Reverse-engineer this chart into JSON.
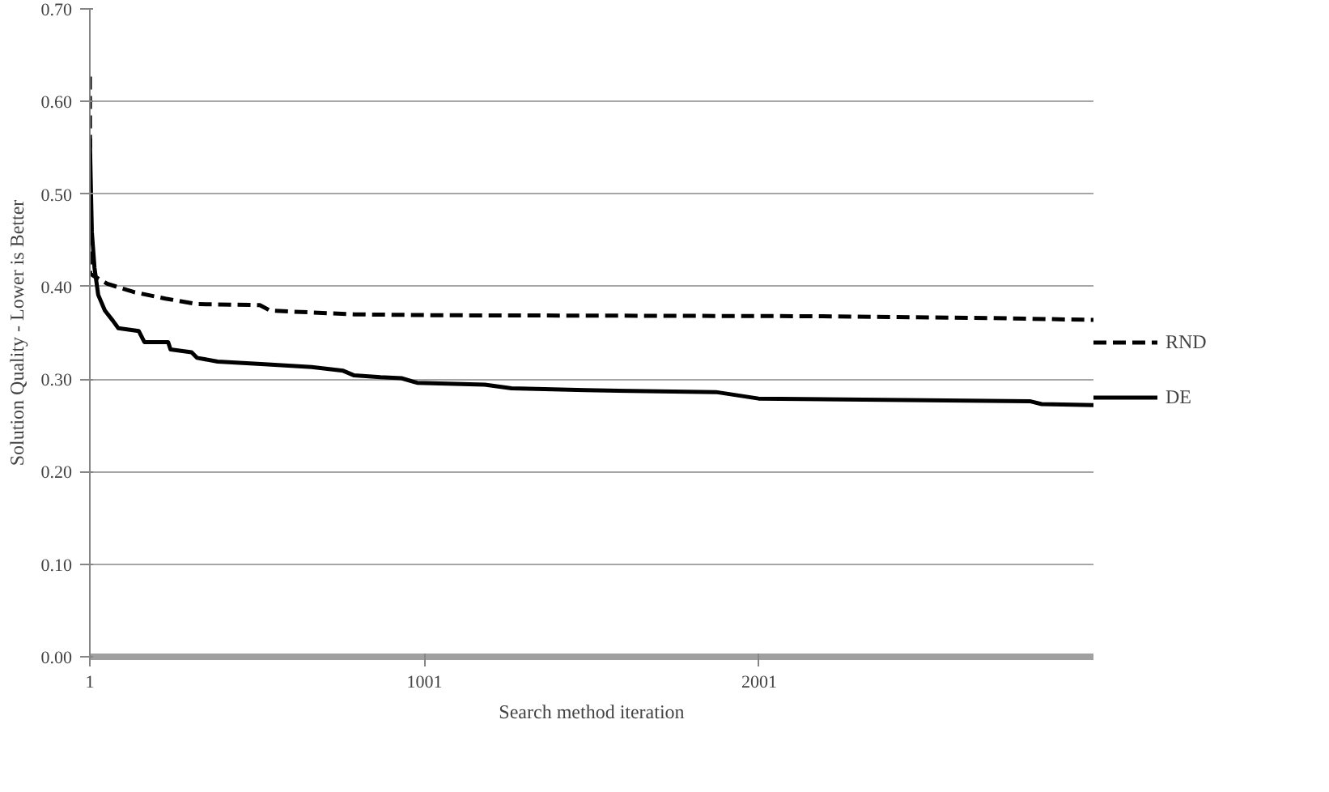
{
  "chart_data": {
    "type": "line",
    "xlabel": "Search method iteration",
    "ylabel": "Solution Quality - Lower is Better",
    "xlim": [
      1,
      3000
    ],
    "xticks": [
      1,
      1001,
      2001
    ],
    "ylim": [
      0,
      0.7
    ],
    "yticks": [
      {
        "value": 0,
        "label": "0.00"
      },
      {
        "value": 0.1,
        "label": "0.10"
      },
      {
        "value": 0.2,
        "label": "0.20"
      },
      {
        "value": 0.3,
        "label": "0.30"
      },
      {
        "value": 0.4,
        "label": "0.40"
      },
      {
        "value": 0.5,
        "label": "0.50"
      },
      {
        "value": 0.6,
        "label": "0.60"
      },
      {
        "value": 0.7,
        "label": "0.70"
      }
    ],
    "grid": "y",
    "legend": "right",
    "marker": "none",
    "series": [
      {
        "name": "RND",
        "color": "#000000",
        "line_style": "dashed",
        "x": [
          1,
          2,
          15,
          53,
          133,
          227,
          321,
          509,
          540,
          791,
          1040,
          2154,
          2685,
          3000
        ],
        "values": [
          0.627,
          0.414,
          0.411,
          0.403,
          0.394,
          0.387,
          0.381,
          0.38,
          0.374,
          0.37,
          0.369,
          0.368,
          0.366,
          0.364
        ]
      },
      {
        "name": "DE",
        "color": "#000000",
        "line_style": "solid",
        "x": [
          1,
          7,
          15,
          26,
          46,
          70,
          86,
          147,
          164,
          235,
          242,
          305,
          321,
          383,
          523,
          664,
          758,
          791,
          869,
          932,
          979,
          1181,
          1261,
          1482,
          1872,
          1999,
          2812,
          2845,
          3000
        ],
        "values": [
          0.56,
          0.459,
          0.42,
          0.391,
          0.374,
          0.363,
          0.355,
          0.352,
          0.34,
          0.34,
          0.332,
          0.329,
          0.323,
          0.319,
          0.316,
          0.313,
          0.309,
          0.304,
          0.302,
          0.301,
          0.296,
          0.294,
          0.29,
          0.288,
          0.286,
          0.279,
          0.276,
          0.273,
          0.272
        ]
      }
    ]
  }
}
